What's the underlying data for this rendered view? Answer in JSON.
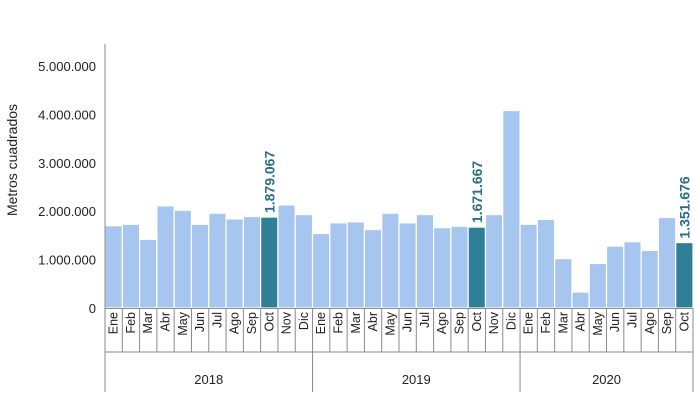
{
  "chart_data": {
    "type": "bar",
    "title": "",
    "xlabel": "",
    "ylabel": "Metros cuadrados",
    "ylim": [
      0,
      5000000
    ],
    "yticks": [
      {
        "value": 0,
        "label": "0"
      },
      {
        "value": 1000000,
        "label": "1.000.000"
      },
      {
        "value": 2000000,
        "label": "2.000.000"
      },
      {
        "value": 3000000,
        "label": "3.000.000"
      },
      {
        "value": 4000000,
        "label": "4.000.000"
      },
      {
        "value": 5000000,
        "label": "5.000.000"
      }
    ],
    "grid": false,
    "colors": {
      "bar": "#a6c6f0",
      "highlight": "#2f7f96",
      "label": "#2a6f86",
      "axis": "#8a8a8a"
    },
    "groups": [
      {
        "label": "2018",
        "months": [
          {
            "m": "Ene",
            "v": 1700000
          },
          {
            "m": "Feb",
            "v": 1730000
          },
          {
            "m": "Mar",
            "v": 1420000
          },
          {
            "m": "Abr",
            "v": 2110000
          },
          {
            "m": "May",
            "v": 2020000
          },
          {
            "m": "Jun",
            "v": 1730000
          },
          {
            "m": "Jul",
            "v": 1960000
          },
          {
            "m": "Ago",
            "v": 1840000
          },
          {
            "m": "Sep",
            "v": 1890000
          },
          {
            "m": "Oct",
            "v": 1879067,
            "highlight": true,
            "label": "1.879.067"
          },
          {
            "m": "Nov",
            "v": 2130000
          },
          {
            "m": "Dic",
            "v": 1930000
          }
        ]
      },
      {
        "label": "2019",
        "months": [
          {
            "m": "Ene",
            "v": 1540000
          },
          {
            "m": "Feb",
            "v": 1760000
          },
          {
            "m": "Mar",
            "v": 1780000
          },
          {
            "m": "Abr",
            "v": 1620000
          },
          {
            "m": "May",
            "v": 1960000
          },
          {
            "m": "Jun",
            "v": 1760000
          },
          {
            "m": "Jul",
            "v": 1930000
          },
          {
            "m": "Ago",
            "v": 1660000
          },
          {
            "m": "Sep",
            "v": 1690000
          },
          {
            "m": "Oct",
            "v": 1671667,
            "highlight": true,
            "label": "1.671.667"
          },
          {
            "m": "Nov",
            "v": 1930000
          },
          {
            "m": "Dic",
            "v": 4080000
          }
        ]
      },
      {
        "label": "2020",
        "months": [
          {
            "m": "Ene",
            "v": 1730000
          },
          {
            "m": "Feb",
            "v": 1830000
          },
          {
            "m": "Mar",
            "v": 1020000
          },
          {
            "m": "Abr",
            "v": 330000
          },
          {
            "m": "May",
            "v": 920000
          },
          {
            "m": "Jun",
            "v": 1280000
          },
          {
            "m": "Jul",
            "v": 1370000
          },
          {
            "m": "Ago",
            "v": 1190000
          },
          {
            "m": "Sep",
            "v": 1870000
          },
          {
            "m": "Oct",
            "v": 1351676,
            "highlight": true,
            "label": "1.351.676"
          }
        ]
      }
    ]
  }
}
